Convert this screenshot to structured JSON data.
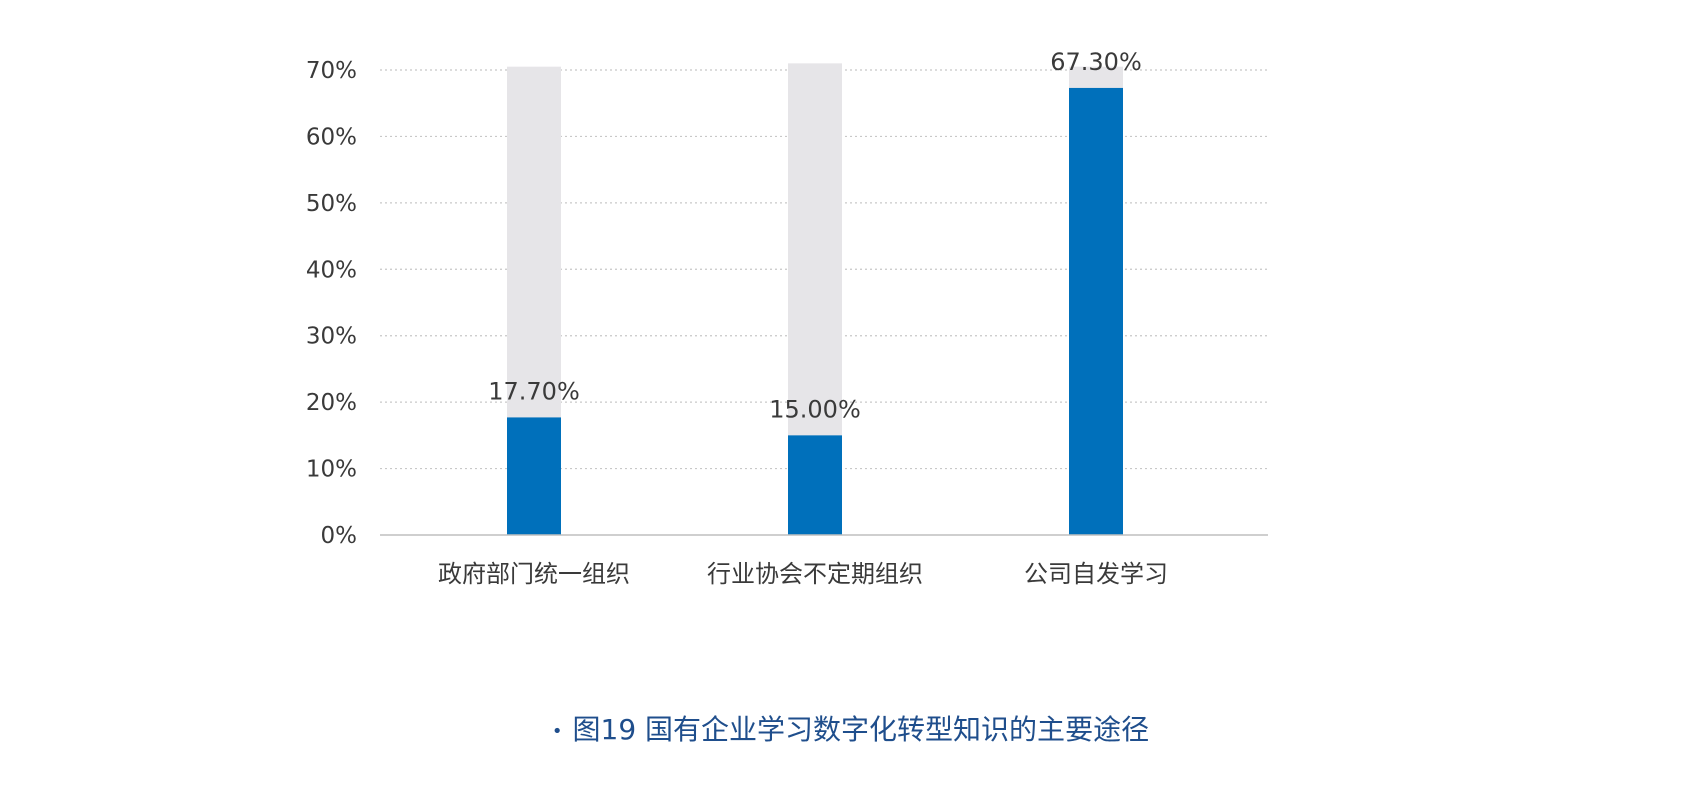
{
  "chart_data": {
    "type": "bar",
    "categories": [
      "政府部门统一组织",
      "行业协会不定期组织",
      "公司自发学习"
    ],
    "values": [
      17.7,
      15.0,
      67.3
    ],
    "value_labels": [
      "17.70%",
      "15.00%",
      "67.30%"
    ],
    "background_values": [
      70.5,
      71.0,
      70.5
    ],
    "y_ticks": [
      0,
      10,
      20,
      30,
      40,
      50,
      60,
      70
    ],
    "y_tick_labels": [
      "0%",
      "10%",
      "20%",
      "30%",
      "40%",
      "50%",
      "60%",
      "70%"
    ],
    "ylim": [
      0,
      70
    ],
    "grid": true,
    "colors": {
      "bar": "#0070bb",
      "background_bar": "#e6e5e8",
      "grid": "#c8c8c8",
      "axis": "#bfbfbf"
    }
  },
  "caption": {
    "bullet": "•",
    "text": "图19  国有企业学习数字化转型知识的主要途径"
  }
}
